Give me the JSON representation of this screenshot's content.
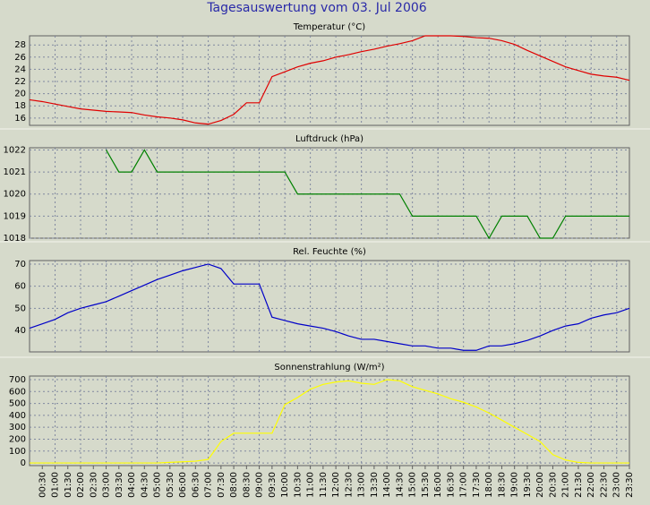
{
  "title": "Tagesauswertung vom 03. Jul 2006",
  "categories": [
    null,
    "00:30",
    "01:00",
    "01:30",
    "02:00",
    "02:30",
    "03:00",
    "03:30",
    "04:00",
    "04:30",
    "05:00",
    "05:30",
    "06:00",
    "06:30",
    "07:00",
    "07:30",
    "08:00",
    "08:30",
    "09:00",
    "09:30",
    "10:00",
    "10:30",
    "11:00",
    "11:30",
    "12:00",
    "12:30",
    "13:00",
    "13:30",
    "14:00",
    "14:30",
    "15:00",
    "15:30",
    "16:00",
    "16:30",
    "17:00",
    "17:30",
    "18:00",
    "18:30",
    "19:00",
    "19:30",
    "20:00",
    "20:30",
    "21:00",
    "21:30",
    "22:00",
    "22:30",
    "23:00",
    "23:30"
  ],
  "chart_data": [
    {
      "type": "line",
      "title": "Temperatur (°C)",
      "color": "#e00000",
      "values": [
        19.0,
        18.7,
        18.3,
        17.9,
        17.5,
        17.3,
        17.1,
        17.0,
        16.9,
        16.5,
        16.2,
        16.0,
        15.7,
        15.2,
        15.0,
        15.6,
        16.6,
        18.5,
        18.5,
        22.8,
        23.6,
        24.4,
        25.0,
        25.4,
        26.0,
        26.4,
        26.9,
        27.3,
        27.8,
        28.2,
        28.7,
        29.5,
        29.5,
        29.5,
        29.4,
        29.2,
        29.1,
        28.7,
        28.1,
        27.1,
        26.2,
        25.3,
        24.4,
        23.8,
        23.2,
        22.9,
        22.7,
        22.2
      ],
      "ylim": [
        14.8,
        29.5
      ],
      "yticks": [
        16,
        18,
        20,
        22,
        24,
        26,
        28
      ],
      "grid": true
    },
    {
      "type": "line",
      "title": "Luftdruck (hPa)",
      "color": "#008000",
      "values": [
        null,
        null,
        null,
        null,
        null,
        null,
        1022,
        1021,
        1021,
        1022,
        1021,
        1021,
        1021,
        1021,
        1021,
        1021,
        1021,
        1021,
        1021,
        1021,
        1021,
        1020,
        1020,
        1020,
        1020,
        1020,
        1020,
        1020,
        1020,
        1020,
        1019,
        1019,
        1019,
        1019,
        1019,
        1019,
        1018,
        1019,
        1019,
        1019,
        1018,
        1018,
        1019,
        1019,
        1019,
        1019,
        1019,
        1019
      ],
      "ylim": [
        1018,
        1022.1
      ],
      "yticks": [
        1018,
        1019,
        1020,
        1021,
        1022
      ],
      "grid": true
    },
    {
      "type": "line",
      "title": "Rel. Feuchte (%)",
      "color": "#0000c8",
      "values": [
        41,
        43,
        45,
        48,
        50,
        51.5,
        53,
        55.5,
        58,
        60.5,
        63,
        65,
        67,
        68.5,
        70,
        68,
        61,
        61,
        61,
        46,
        44.5,
        43,
        42,
        41,
        39.5,
        37.5,
        36,
        36,
        35,
        34,
        33,
        33,
        32,
        32,
        31,
        31,
        33,
        33,
        34,
        35.5,
        37.5,
        40,
        42,
        43,
        45.5,
        47,
        48,
        50
      ],
      "ylim": [
        30.3,
        71.6
      ],
      "yticks": [
        40,
        50,
        60,
        70
      ],
      "grid": true
    },
    {
      "type": "line",
      "title": "Sonnenstrahlung (W/m²)",
      "color": "#ffff00",
      "values": [
        0,
        0,
        0,
        0,
        0,
        0,
        0,
        0,
        0,
        0,
        0,
        5,
        10,
        15,
        30,
        180,
        250,
        250,
        250,
        250,
        490,
        550,
        620,
        660,
        680,
        690,
        670,
        660,
        700,
        690,
        640,
        610,
        580,
        540,
        510,
        470,
        420,
        360,
        300,
        240,
        180,
        70,
        25,
        5,
        0,
        0,
        0,
        0
      ],
      "ylim": [
        -22,
        730
      ],
      "yticks": [
        0,
        100,
        200,
        300,
        400,
        500,
        600,
        700
      ],
      "grid": true
    }
  ]
}
